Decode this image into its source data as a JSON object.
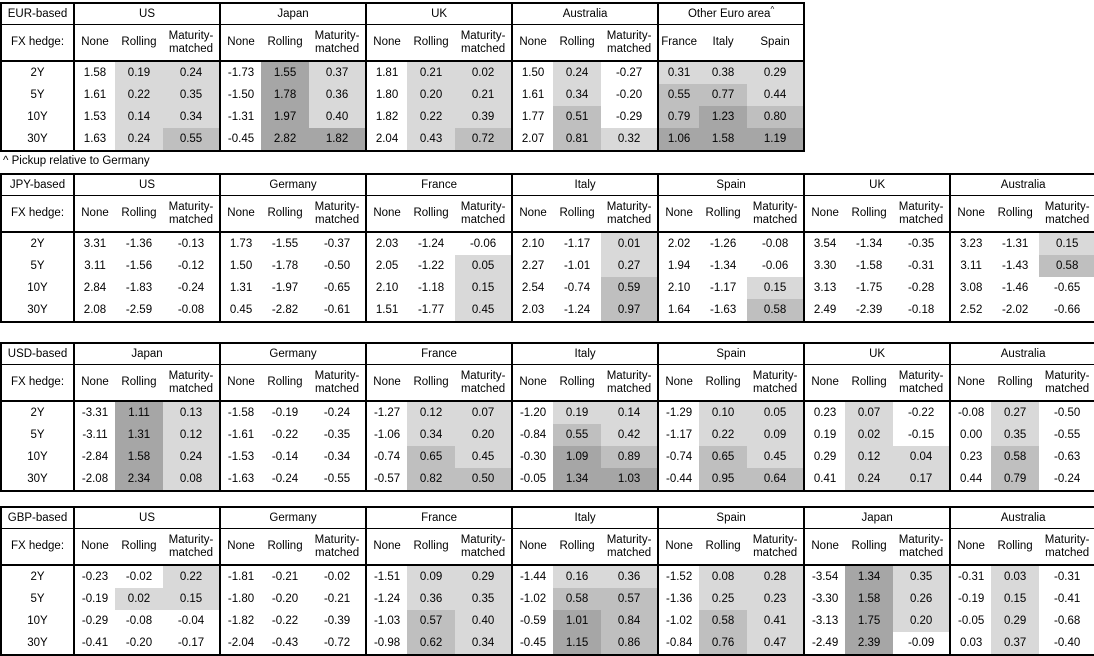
{
  "meta": {
    "fx_hedge_label": "FX hedge:",
    "row_labels": [
      "2Y",
      "5Y",
      "10Y",
      "30Y"
    ],
    "default_hedge_cols": [
      "None",
      "Rolling",
      "Maturity-matched"
    ],
    "footnote": "^ Pickup relative to Germany"
  },
  "heatmap": {
    "comment_rule": "cells in Rolling/Maturity-matched columns (and all pickup columns) shaded by value: <0 white, 0 to 0.5 light, 0.5 to 1.0 medium, >=1.0 dark",
    "thresholds": [
      0,
      0.5,
      1.0
    ],
    "colors": [
      "#ffffff",
      "#d9d9d9",
      "#bfbfbf",
      "#a6a6a6"
    ],
    "border_color": "#000000"
  },
  "tables": [
    {
      "base_label": "EUR-based",
      "full_width": false,
      "groups": [
        {
          "name": "US",
          "columns": [
            "None",
            "Rolling",
            "Maturity-matched"
          ],
          "shade_all_columns": false,
          "values": [
            [
              "1.58",
              "0.19",
              "0.24"
            ],
            [
              "1.61",
              "0.22",
              "0.35"
            ],
            [
              "1.53",
              "0.14",
              "0.34"
            ],
            [
              "1.63",
              "0.24",
              "0.55"
            ]
          ]
        },
        {
          "name": "Japan",
          "columns": [
            "None",
            "Rolling",
            "Maturity-matched"
          ],
          "shade_all_columns": false,
          "values": [
            [
              "-1.73",
              "1.55",
              "0.37"
            ],
            [
              "-1.50",
              "1.78",
              "0.36"
            ],
            [
              "-1.31",
              "1.97",
              "0.40"
            ],
            [
              "-0.45",
              "2.82",
              "1.82"
            ]
          ]
        },
        {
          "name": "UK",
          "columns": [
            "None",
            "Rolling",
            "Maturity-matched"
          ],
          "shade_all_columns": false,
          "values": [
            [
              "1.81",
              "0.21",
              "0.02"
            ],
            [
              "1.80",
              "0.20",
              "0.21"
            ],
            [
              "1.82",
              "0.22",
              "0.39"
            ],
            [
              "2.04",
              "0.43",
              "0.72"
            ]
          ]
        },
        {
          "name": "Australia",
          "columns": [
            "None",
            "Rolling",
            "Maturity-matched"
          ],
          "shade_all_columns": false,
          "values": [
            [
              "1.50",
              "0.24",
              "-0.27"
            ],
            [
              "1.61",
              "0.34",
              "-0.20"
            ],
            [
              "1.77",
              "0.51",
              "-0.29"
            ],
            [
              "2.07",
              "0.81",
              "0.32"
            ]
          ]
        },
        {
          "name": "Other Euro area",
          "superscript": "^",
          "columns": [
            "France",
            "Italy",
            "Spain"
          ],
          "shade_all_columns": true,
          "values": [
            [
              "0.31",
              "0.38",
              "0.29"
            ],
            [
              "0.55",
              "0.77",
              "0.44"
            ],
            [
              "0.79",
              "1.23",
              "0.80"
            ],
            [
              "1.06",
              "1.58",
              "1.19"
            ]
          ]
        }
      ]
    },
    {
      "base_label": "JPY-based",
      "full_width": true,
      "groups": [
        {
          "name": "US",
          "columns": [
            "None",
            "Rolling",
            "Maturity-matched"
          ],
          "shade_all_columns": false,
          "values": [
            [
              "3.31",
              "-1.36",
              "-0.13"
            ],
            [
              "3.11",
              "-1.56",
              "-0.12"
            ],
            [
              "2.84",
              "-1.83",
              "-0.24"
            ],
            [
              "2.08",
              "-2.59",
              "-0.08"
            ]
          ]
        },
        {
          "name": "Germany",
          "columns": [
            "None",
            "Rolling",
            "Maturity-matched"
          ],
          "shade_all_columns": false,
          "values": [
            [
              "1.73",
              "-1.55",
              "-0.37"
            ],
            [
              "1.50",
              "-1.78",
              "-0.50"
            ],
            [
              "1.31",
              "-1.97",
              "-0.65"
            ],
            [
              "0.45",
              "-2.82",
              "-0.61"
            ]
          ]
        },
        {
          "name": "France",
          "columns": [
            "None",
            "Rolling",
            "Maturity-matched"
          ],
          "shade_all_columns": false,
          "values": [
            [
              "2.03",
              "-1.24",
              "-0.06"
            ],
            [
              "2.05",
              "-1.22",
              "0.05"
            ],
            [
              "2.10",
              "-1.18",
              "0.15"
            ],
            [
              "1.51",
              "-1.77",
              "0.45"
            ]
          ]
        },
        {
          "name": "Italy",
          "columns": [
            "None",
            "Rolling",
            "Maturity-matched"
          ],
          "shade_all_columns": false,
          "values": [
            [
              "2.10",
              "-1.17",
              "0.01"
            ],
            [
              "2.27",
              "-1.01",
              "0.27"
            ],
            [
              "2.54",
              "-0.74",
              "0.59"
            ],
            [
              "2.03",
              "-1.24",
              "0.97"
            ]
          ]
        },
        {
          "name": "Spain",
          "columns": [
            "None",
            "Rolling",
            "Maturity-matched"
          ],
          "shade_all_columns": false,
          "values": [
            [
              "2.02",
              "-1.26",
              "-0.08"
            ],
            [
              "1.94",
              "-1.34",
              "-0.06"
            ],
            [
              "2.10",
              "-1.17",
              "0.15"
            ],
            [
              "1.64",
              "-1.63",
              "0.58"
            ]
          ]
        },
        {
          "name": "UK",
          "columns": [
            "None",
            "Rolling",
            "Maturity-matched"
          ],
          "shade_all_columns": false,
          "values": [
            [
              "3.54",
              "-1.34",
              "-0.35"
            ],
            [
              "3.30",
              "-1.58",
              "-0.31"
            ],
            [
              "3.13",
              "-1.75",
              "-0.28"
            ],
            [
              "2.49",
              "-2.39",
              "-0.18"
            ]
          ]
        },
        {
          "name": "Australia",
          "columns": [
            "None",
            "Rolling",
            "Maturity-matched"
          ],
          "shade_all_columns": false,
          "values": [
            [
              "3.23",
              "-1.31",
              "0.15"
            ],
            [
              "3.11",
              "-1.43",
              "0.58"
            ],
            [
              "3.08",
              "-1.46",
              "-0.65"
            ],
            [
              "2.52",
              "-2.02",
              "-0.66"
            ]
          ]
        }
      ]
    },
    {
      "base_label": "USD-based",
      "full_width": true,
      "groups": [
        {
          "name": "Japan",
          "columns": [
            "None",
            "Rolling",
            "Maturity-matched"
          ],
          "shade_all_columns": false,
          "values": [
            [
              "-3.31",
              "1.11",
              "0.13"
            ],
            [
              "-3.11",
              "1.31",
              "0.12"
            ],
            [
              "-2.84",
              "1.58",
              "0.24"
            ],
            [
              "-2.08",
              "2.34",
              "0.08"
            ]
          ]
        },
        {
          "name": "Germany",
          "columns": [
            "None",
            "Rolling",
            "Maturity-matched"
          ],
          "shade_all_columns": false,
          "values": [
            [
              "-1.58",
              "-0.19",
              "-0.24"
            ],
            [
              "-1.61",
              "-0.22",
              "-0.35"
            ],
            [
              "-1.53",
              "-0.14",
              "-0.34"
            ],
            [
              "-1.63",
              "-0.24",
              "-0.55"
            ]
          ]
        },
        {
          "name": "France",
          "columns": [
            "None",
            "Rolling",
            "Maturity-matched"
          ],
          "shade_all_columns": false,
          "values": [
            [
              "-1.27",
              "0.12",
              "0.07"
            ],
            [
              "-1.06",
              "0.34",
              "0.20"
            ],
            [
              "-0.74",
              "0.65",
              "0.45"
            ],
            [
              "-0.57",
              "0.82",
              "0.50"
            ]
          ]
        },
        {
          "name": "Italy",
          "columns": [
            "None",
            "Rolling",
            "Maturity-matched"
          ],
          "shade_all_columns": false,
          "values": [
            [
              "-1.20",
              "0.19",
              "0.14"
            ],
            [
              "-0.84",
              "0.55",
              "0.42"
            ],
            [
              "-0.30",
              "1.09",
              "0.89"
            ],
            [
              "-0.05",
              "1.34",
              "1.03"
            ]
          ]
        },
        {
          "name": "Spain",
          "columns": [
            "None",
            "Rolling",
            "Maturity-matched"
          ],
          "shade_all_columns": false,
          "values": [
            [
              "-1.29",
              "0.10",
              "0.05"
            ],
            [
              "-1.17",
              "0.22",
              "0.09"
            ],
            [
              "-0.74",
              "0.65",
              "0.45"
            ],
            [
              "-0.44",
              "0.95",
              "0.64"
            ]
          ]
        },
        {
          "name": "UK",
          "columns": [
            "None",
            "Rolling",
            "Maturity-matched"
          ],
          "shade_all_columns": false,
          "values": [
            [
              "0.23",
              "0.07",
              "-0.22"
            ],
            [
              "0.19",
              "0.02",
              "-0.15"
            ],
            [
              "0.29",
              "0.12",
              "0.04"
            ],
            [
              "0.41",
              "0.24",
              "0.17"
            ]
          ]
        },
        {
          "name": "Australia",
          "columns": [
            "None",
            "Rolling",
            "Maturity-matched"
          ],
          "shade_all_columns": false,
          "values": [
            [
              "-0.08",
              "0.27",
              "-0.50"
            ],
            [
              "0.00",
              "0.35",
              "-0.55"
            ],
            [
              "0.23",
              "0.58",
              "-0.63"
            ],
            [
              "0.44",
              "0.79",
              "-0.24"
            ]
          ]
        }
      ]
    },
    {
      "base_label": "GBP-based",
      "full_width": true,
      "groups": [
        {
          "name": "US",
          "columns": [
            "None",
            "Rolling",
            "Maturity-matched"
          ],
          "shade_all_columns": false,
          "values": [
            [
              "-0.23",
              "-0.02",
              "0.22"
            ],
            [
              "-0.19",
              "0.02",
              "0.15"
            ],
            [
              "-0.29",
              "-0.08",
              "-0.04"
            ],
            [
              "-0.41",
              "-0.20",
              "-0.17"
            ]
          ]
        },
        {
          "name": "Germany",
          "columns": [
            "None",
            "Rolling",
            "Maturity-matched"
          ],
          "shade_all_columns": false,
          "values": [
            [
              "-1.81",
              "-0.21",
              "-0.02"
            ],
            [
              "-1.80",
              "-0.20",
              "-0.21"
            ],
            [
              "-1.82",
              "-0.22",
              "-0.39"
            ],
            [
              "-2.04",
              "-0.43",
              "-0.72"
            ]
          ]
        },
        {
          "name": "France",
          "columns": [
            "None",
            "Rolling",
            "Maturity-matched"
          ],
          "shade_all_columns": false,
          "values": [
            [
              "-1.51",
              "0.09",
              "0.29"
            ],
            [
              "-1.24",
              "0.36",
              "0.35"
            ],
            [
              "-1.03",
              "0.57",
              "0.40"
            ],
            [
              "-0.98",
              "0.62",
              "0.34"
            ]
          ]
        },
        {
          "name": "Italy",
          "columns": [
            "None",
            "Rolling",
            "Maturity-matched"
          ],
          "shade_all_columns": false,
          "values": [
            [
              "-1.44",
              "0.16",
              "0.36"
            ],
            [
              "-1.02",
              "0.58",
              "0.57"
            ],
            [
              "-0.59",
              "1.01",
              "0.84"
            ],
            [
              "-0.45",
              "1.15",
              "0.86"
            ]
          ]
        },
        {
          "name": "Spain",
          "columns": [
            "None",
            "Rolling",
            "Maturity-matched"
          ],
          "shade_all_columns": false,
          "values": [
            [
              "-1.52",
              "0.08",
              "0.28"
            ],
            [
              "-1.36",
              "0.25",
              "0.23"
            ],
            [
              "-1.02",
              "0.58",
              "0.41"
            ],
            [
              "-0.84",
              "0.76",
              "0.47"
            ]
          ]
        },
        {
          "name": "Japan",
          "columns": [
            "None",
            "Rolling",
            "Maturity-matched"
          ],
          "shade_all_columns": false,
          "values": [
            [
              "-3.54",
              "1.34",
              "0.35"
            ],
            [
              "-3.30",
              "1.58",
              "0.26"
            ],
            [
              "-3.13",
              "1.75",
              "0.20"
            ],
            [
              "-2.49",
              "2.39",
              "-0.09"
            ]
          ]
        },
        {
          "name": "Australia",
          "columns": [
            "None",
            "Rolling",
            "Maturity-matched"
          ],
          "shade_all_columns": false,
          "values": [
            [
              "-0.31",
              "0.03",
              "-0.31"
            ],
            [
              "-0.19",
              "0.15",
              "-0.41"
            ],
            [
              "-0.05",
              "0.29",
              "-0.68"
            ],
            [
              "0.03",
              "0.37",
              "-0.40"
            ]
          ]
        }
      ]
    }
  ]
}
